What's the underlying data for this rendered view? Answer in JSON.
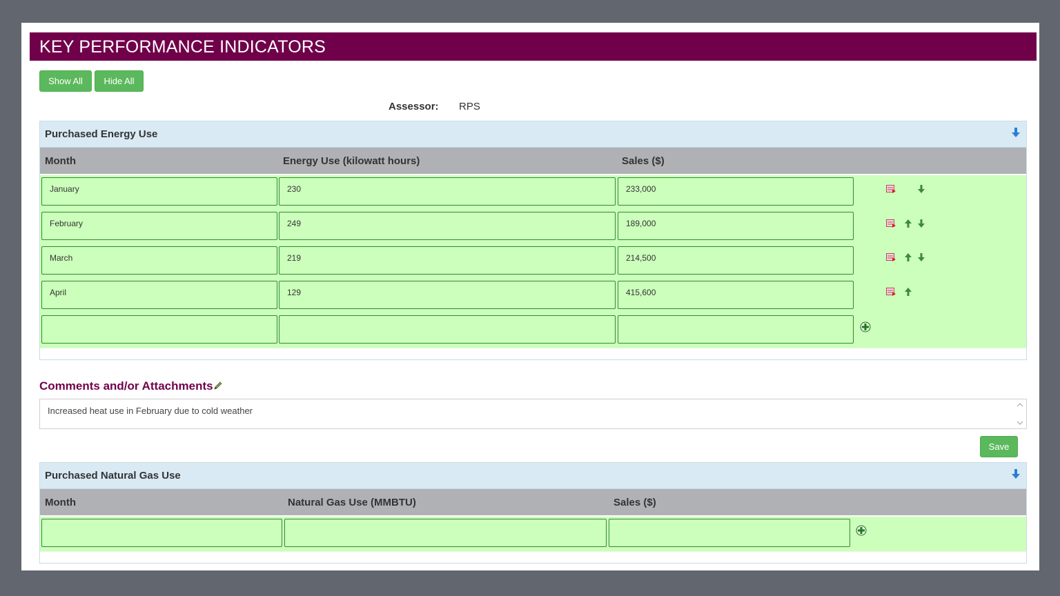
{
  "page_title": "KEY PERFORMANCE INDICATORS",
  "toolbar": {
    "show_all": "Show All",
    "hide_all": "Hide All"
  },
  "assessor": {
    "label": "Assessor:",
    "value": "RPS"
  },
  "energy": {
    "title": "Purchased Energy Use",
    "columns": [
      "Month",
      "Energy Use (kilowatt hours)",
      "Sales ($)"
    ],
    "rows": [
      {
        "month": "January",
        "use": "230",
        "sales": "233,000"
      },
      {
        "month": "February",
        "use": "249",
        "sales": "189,000"
      },
      {
        "month": "March",
        "use": "219",
        "sales": "214,500"
      },
      {
        "month": "April",
        "use": "129",
        "sales": "415,600"
      }
    ]
  },
  "comments": {
    "title": "Comments and/or Attachments",
    "text": "Increased heat use in February due to cold weather",
    "save": "Save"
  },
  "gas": {
    "title": "Purchased Natural Gas Use",
    "columns": [
      "Month",
      "Natural Gas Use (MMBTU)",
      "Sales ($)"
    ]
  },
  "icons": {
    "collapse": "arrow-down-icon",
    "delete_row": "delete-row-icon",
    "move_up": "arrow-up-icon",
    "move_down": "arrow-down-icon",
    "add_row": "add-row-icon",
    "attach": "pencil-icon"
  },
  "colors": {
    "header": "#71004a",
    "button": "#5cb85c",
    "row": "#ccffbb",
    "panel_head": "#d9eaf4",
    "table_head": "#b0b1b5"
  }
}
